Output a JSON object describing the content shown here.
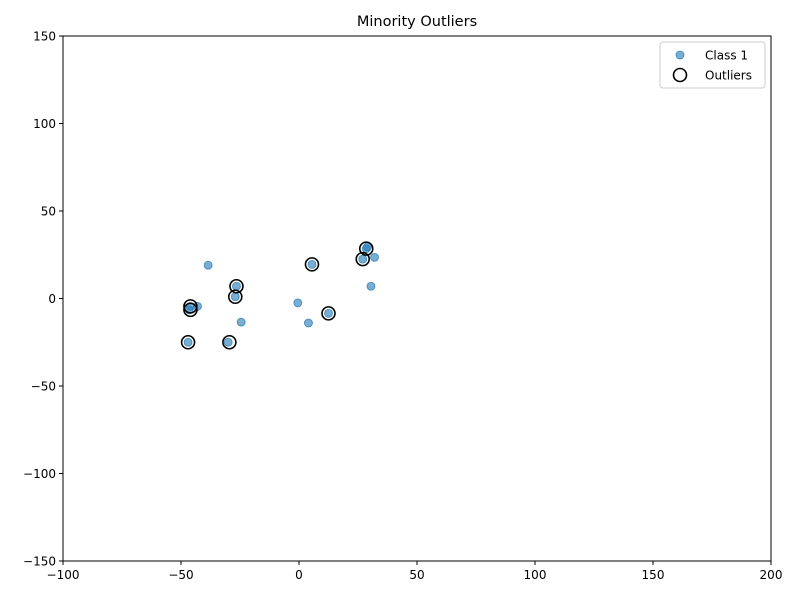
{
  "chart_data": {
    "type": "scatter",
    "title": "Minority Outliers",
    "xlabel": "",
    "ylabel": "",
    "xlim": [
      -100,
      200
    ],
    "ylim": [
      -150,
      150
    ],
    "xticks": [
      -100,
      -50,
      0,
      50,
      100,
      150,
      200
    ],
    "yticks": [
      -150,
      -100,
      -50,
      0,
      50,
      100,
      150
    ],
    "xtick_labels": [
      "−100",
      "−50",
      "0",
      "50",
      "100",
      "150",
      "200"
    ],
    "ytick_labels": [
      "−150",
      "−100",
      "−50",
      "0",
      "50",
      "100",
      "150"
    ],
    "grid": false,
    "legend_position": "top-right",
    "series": [
      {
        "name": "Class 1",
        "marker": "filled-circle",
        "color": "#1f77b4",
        "points": [
          {
            "x": -38.5,
            "y": 19.0
          },
          {
            "x": -43.0,
            "y": -4.5
          },
          {
            "x": -46.0,
            "y": -4.5
          },
          {
            "x": -46.5,
            "y": -6.5
          },
          {
            "x": -47.0,
            "y": -25.0
          },
          {
            "x": -30.0,
            "y": -25.0
          },
          {
            "x": -26.5,
            "y": 7.0
          },
          {
            "x": -27.0,
            "y": 1.0
          },
          {
            "x": -24.5,
            "y": -13.5
          },
          {
            "x": -0.5,
            "y": -2.5
          },
          {
            "x": 4.0,
            "y": -14.0
          },
          {
            "x": 5.5,
            "y": 19.5
          },
          {
            "x": 12.5,
            "y": -8.5
          },
          {
            "x": 27.0,
            "y": 22.5
          },
          {
            "x": 28.5,
            "y": 28.5
          },
          {
            "x": 29.0,
            "y": 29.5
          },
          {
            "x": 32.0,
            "y": 23.5
          },
          {
            "x": 30.5,
            "y": 7.0
          }
        ]
      },
      {
        "name": "Outliers",
        "marker": "hollow-circle",
        "color": "#000000",
        "points": [
          {
            "x": -46.0,
            "y": -4.5
          },
          {
            "x": -46.0,
            "y": -6.5
          },
          {
            "x": -47.0,
            "y": -25.0
          },
          {
            "x": -29.5,
            "y": -25.0
          },
          {
            "x": -26.5,
            "y": 7.0
          },
          {
            "x": -27.0,
            "y": 1.0
          },
          {
            "x": 5.5,
            "y": 19.5
          },
          {
            "x": 12.5,
            "y": -8.5
          },
          {
            "x": 27.0,
            "y": 22.5
          },
          {
            "x": 28.5,
            "y": 28.5
          }
        ]
      }
    ]
  }
}
